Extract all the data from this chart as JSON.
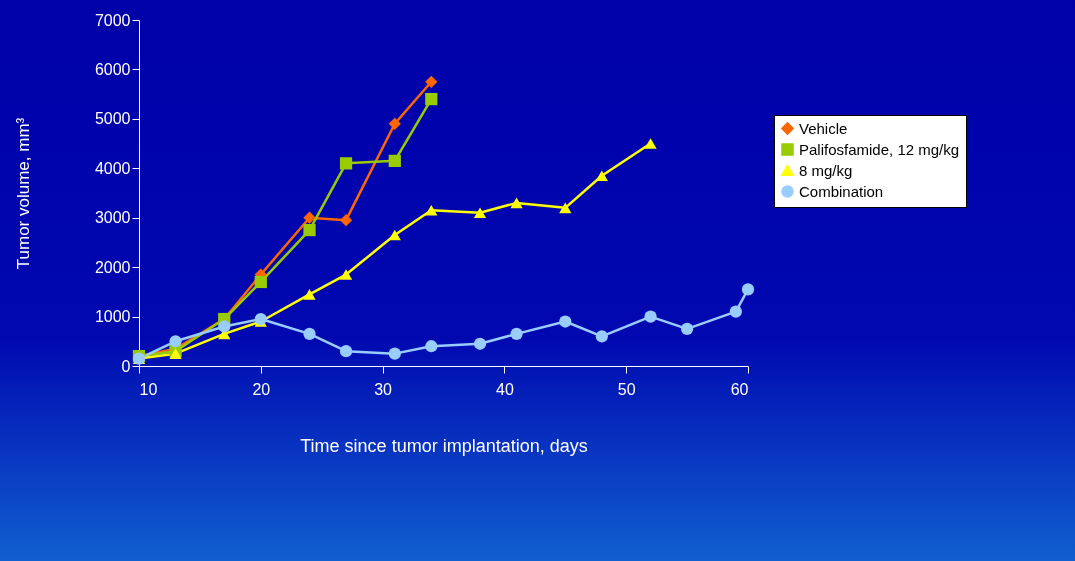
{
  "chart_data": {
    "type": "line",
    "xlabel": "Time since tumor implantation, days",
    "ylabel": "Tumor volume, mm³",
    "xlim": [
      10,
      60
    ],
    "xticks": [
      10,
      20,
      30,
      40,
      50,
      60
    ],
    "ylim": [
      0,
      7000
    ],
    "yticks": [
      0,
      1000,
      2000,
      3000,
      4000,
      5000,
      6000,
      7000
    ],
    "grid": false,
    "legend": "right",
    "line_style": "solid",
    "series": [
      {
        "name": "Vehicle",
        "color": "#ff6600",
        "marker": "diamond",
        "x": [
          10,
          13,
          17,
          20,
          24,
          27,
          31,
          34
        ],
        "values": [
          200,
          350,
          950,
          1850,
          3000,
          2950,
          4900,
          5750
        ]
      },
      {
        "name": "Palifosfamide, 12 mg/kg",
        "color": "#99cc00",
        "marker": "square",
        "x": [
          10,
          13,
          17,
          20,
          24,
          27,
          31,
          34
        ],
        "values": [
          200,
          300,
          950,
          1700,
          2750,
          4100,
          4150,
          5400
        ]
      },
      {
        "name": "8 mg/kg",
        "color": "#ffff00",
        "marker": "triangle",
        "x": [
          10,
          13,
          17,
          20,
          24,
          27,
          31,
          34,
          38,
          41,
          45,
          48,
          52
        ],
        "values": [
          150,
          250,
          650,
          900,
          1450,
          1850,
          2650,
          3150,
          3100,
          3300,
          3200,
          3850,
          4500
        ]
      },
      {
        "name": "Combination",
        "color": "#99ccff",
        "marker": "circle",
        "x": [
          10,
          13,
          17,
          20,
          24,
          27,
          31,
          34,
          38,
          41,
          45,
          48,
          52,
          55,
          59,
          60
        ],
        "values": [
          150,
          500,
          800,
          950,
          650,
          300,
          250,
          400,
          450,
          650,
          900,
          600,
          1000,
          750,
          1100,
          1550
        ]
      }
    ]
  }
}
